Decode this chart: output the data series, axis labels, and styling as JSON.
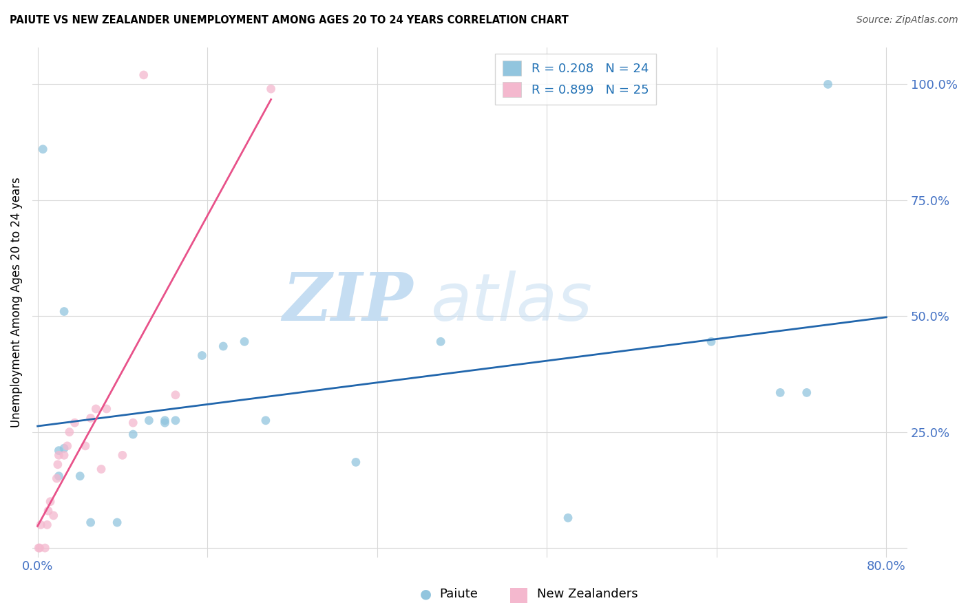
{
  "title": "PAIUTE VS NEW ZEALANDER UNEMPLOYMENT AMONG AGES 20 TO 24 YEARS CORRELATION CHART",
  "source": "Source: ZipAtlas.com",
  "ylabel": "Unemployment Among Ages 20 to 24 years",
  "xlim": [
    -0.005,
    0.82
  ],
  "ylim": [
    -0.02,
    1.08
  ],
  "xtick_pos": [
    0.0,
    0.16,
    0.32,
    0.48,
    0.64,
    0.8
  ],
  "xtick_labels": [
    "0.0%",
    "",
    "",
    "",
    "",
    "80.0%"
  ],
  "ytick_pos": [
    0.0,
    0.25,
    0.5,
    0.75,
    1.0
  ],
  "ytick_labels": [
    "",
    "25.0%",
    "50.0%",
    "75.0%",
    "100.0%"
  ],
  "paiute_color": "#92c5de",
  "nz_color": "#f4b8ce",
  "paiute_line_color": "#2166ac",
  "nz_line_color": "#e8528a",
  "paiute_R": 0.208,
  "paiute_N": 24,
  "nz_R": 0.899,
  "nz_N": 25,
  "legend_label_paiute": "Paiute",
  "legend_label_nz": "New Zealanders",
  "paiute_x": [
    0.005,
    0.02,
    0.025,
    0.04,
    0.05,
    0.075,
    0.09,
    0.105,
    0.13,
    0.155,
    0.175,
    0.195,
    0.215,
    0.3,
    0.38,
    0.5,
    0.635,
    0.7,
    0.725,
    0.745,
    0.025,
    0.02,
    0.12,
    0.12
  ],
  "paiute_y": [
    0.86,
    0.21,
    0.215,
    0.155,
    0.055,
    0.055,
    0.245,
    0.275,
    0.275,
    0.415,
    0.435,
    0.445,
    0.275,
    0.185,
    0.445,
    0.065,
    0.445,
    0.335,
    0.335,
    1.0,
    0.51,
    0.155,
    0.275,
    0.27
  ],
  "nz_x": [
    0.001,
    0.002,
    0.003,
    0.007,
    0.009,
    0.01,
    0.012,
    0.015,
    0.018,
    0.019,
    0.02,
    0.025,
    0.028,
    0.03,
    0.035,
    0.045,
    0.05,
    0.055,
    0.06,
    0.065,
    0.08,
    0.09,
    0.1,
    0.13,
    0.22
  ],
  "nz_y": [
    0.0,
    0.0,
    0.05,
    0.0,
    0.05,
    0.08,
    0.1,
    0.07,
    0.15,
    0.18,
    0.2,
    0.2,
    0.22,
    0.25,
    0.27,
    0.22,
    0.28,
    0.3,
    0.17,
    0.3,
    0.2,
    0.27,
    1.02,
    0.33,
    0.99
  ],
  "background_color": "#ffffff",
  "grid_color": "#d8d8d8",
  "title_color": "#000000",
  "tick_color": "#4472c4",
  "marker_size": 85,
  "watermark_zip_color": "#c5ddf2",
  "watermark_atlas_color": "#c5ddf2"
}
